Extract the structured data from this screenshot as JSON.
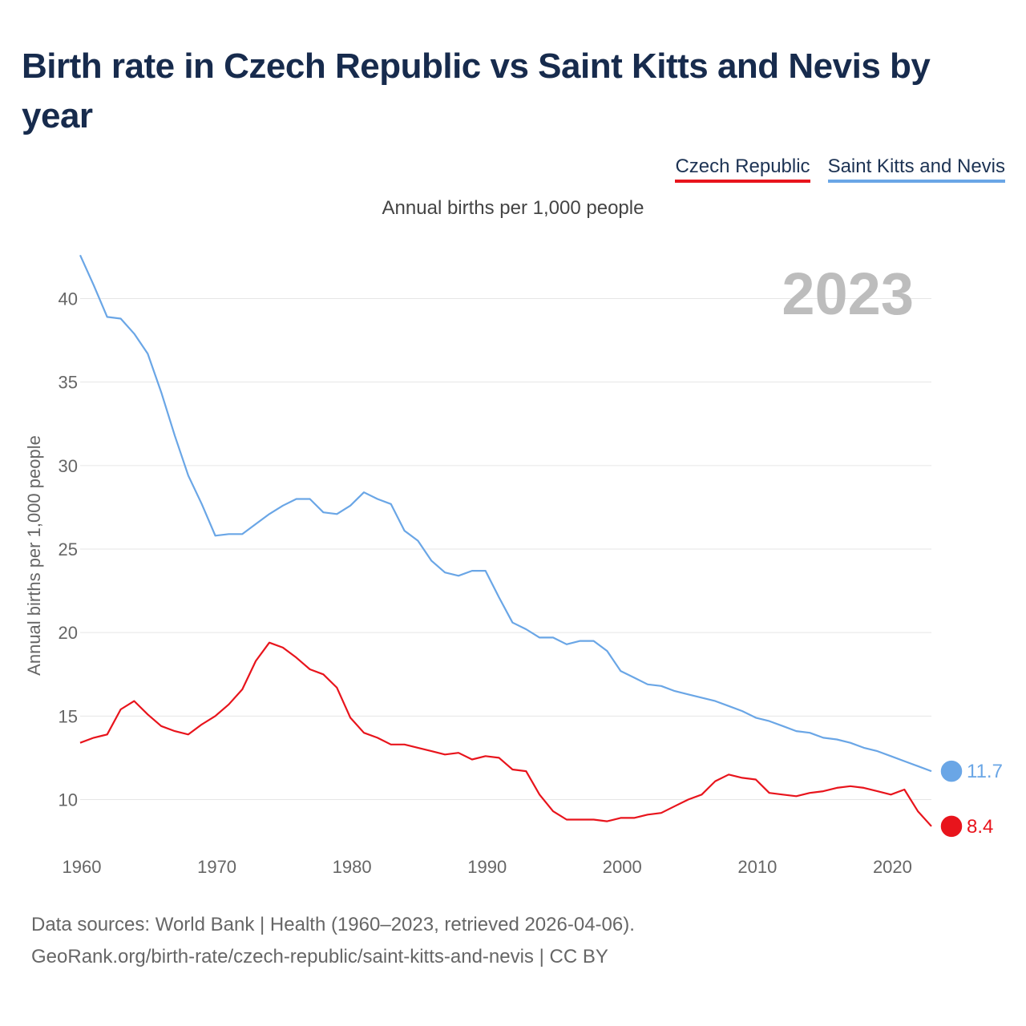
{
  "title": "Birth rate in Czech Republic vs Saint Kitts and Nevis by year",
  "subtitle": "Annual births per 1,000 people",
  "footer": {
    "line1": "Data sources: World Bank | Health (1960–2023, retrieved 2026-04-06).",
    "line2": "GeoRank.org/birth-rate/czech-republic/saint-kitts-and-nevis | CC BY"
  },
  "chart_data": {
    "type": "line",
    "title": "Birth rate in Czech Republic vs Saint Kitts and Nevis by year",
    "xlabel": "",
    "ylabel": "Annual births per 1,000 people",
    "year_label": "2023",
    "xlim": [
      1960,
      2023
    ],
    "ylim": [
      7,
      43
    ],
    "x_ticks": [
      1960,
      1970,
      1980,
      1990,
      2000,
      2010,
      2020
    ],
    "y_ticks": [
      10,
      15,
      20,
      25,
      30,
      35,
      40
    ],
    "grid": true,
    "legend_position": "top-right",
    "x": [
      1960,
      1961,
      1962,
      1963,
      1964,
      1965,
      1966,
      1967,
      1968,
      1969,
      1970,
      1971,
      1972,
      1973,
      1974,
      1975,
      1976,
      1977,
      1978,
      1979,
      1980,
      1981,
      1982,
      1983,
      1984,
      1985,
      1986,
      1987,
      1988,
      1989,
      1990,
      1991,
      1992,
      1993,
      1994,
      1995,
      1996,
      1997,
      1998,
      1999,
      2000,
      2001,
      2002,
      2003,
      2004,
      2005,
      2006,
      2007,
      2008,
      2009,
      2010,
      2011,
      2012,
      2013,
      2014,
      2015,
      2016,
      2017,
      2018,
      2019,
      2020,
      2021,
      2022,
      2023
    ],
    "series": [
      {
        "name": "Czech Republic",
        "color": "#e8141c",
        "end_label": "8.4",
        "values": [
          13.4,
          13.7,
          13.9,
          15.4,
          15.9,
          15.1,
          14.4,
          14.1,
          13.9,
          14.5,
          15.0,
          15.7,
          16.6,
          18.3,
          19.4,
          19.1,
          18.5,
          17.8,
          17.5,
          16.7,
          14.9,
          14.0,
          13.7,
          13.3,
          13.3,
          13.1,
          12.9,
          12.7,
          12.8,
          12.4,
          12.6,
          12.5,
          11.8,
          11.7,
          10.3,
          9.3,
          8.8,
          8.8,
          8.8,
          8.7,
          8.9,
          8.9,
          9.1,
          9.2,
          9.6,
          10.0,
          10.3,
          11.1,
          11.5,
          11.3,
          11.2,
          10.4,
          10.3,
          10.2,
          10.4,
          10.5,
          10.7,
          10.8,
          10.7,
          10.5,
          10.3,
          10.6,
          9.3,
          8.4
        ]
      },
      {
        "name": "Saint Kitts and Nevis",
        "color": "#6aa6e6",
        "end_label": "11.7",
        "values": [
          42.6,
          40.8,
          38.9,
          38.8,
          37.9,
          36.7,
          34.4,
          31.8,
          29.4,
          27.7,
          25.8,
          25.9,
          25.9,
          26.5,
          27.1,
          27.6,
          28.0,
          28.0,
          27.2,
          27.1,
          27.6,
          28.4,
          28.0,
          27.7,
          26.1,
          25.5,
          24.3,
          23.6,
          23.4,
          23.7,
          23.7,
          22.1,
          20.6,
          20.2,
          19.7,
          19.7,
          19.3,
          19.5,
          19.5,
          18.9,
          17.7,
          17.3,
          16.9,
          16.8,
          16.5,
          16.3,
          16.1,
          15.9,
          15.6,
          15.3,
          14.9,
          14.7,
          14.4,
          14.1,
          14.0,
          13.7,
          13.6,
          13.4,
          13.1,
          12.9,
          12.6,
          12.3,
          12.0,
          11.7
        ]
      }
    ]
  }
}
